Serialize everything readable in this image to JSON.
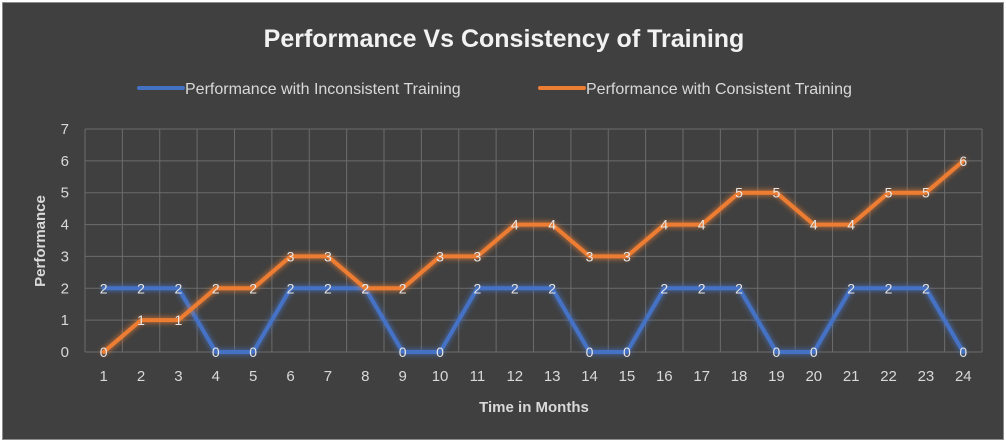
{
  "chart_data": {
    "type": "line",
    "title": "Performance Vs Consistency of Training",
    "xlabel": "Time in Months",
    "ylabel": "Performance",
    "categories": [
      "1",
      "2",
      "3",
      "4",
      "5",
      "6",
      "7",
      "8",
      "9",
      "10",
      "11",
      "12",
      "13",
      "14",
      "15",
      "16",
      "17",
      "18",
      "19",
      "20",
      "21",
      "22",
      "23",
      "24"
    ],
    "ylim": [
      0,
      7
    ],
    "yticks": [
      "0",
      "1",
      "2",
      "3",
      "4",
      "5",
      "6",
      "7"
    ],
    "grid": true,
    "legend_position": "top",
    "series": [
      {
        "name": "Performance with Inconsistent Training",
        "color": "#4472c4",
        "values": [
          2,
          2,
          2,
          0,
          0,
          2,
          2,
          2,
          0,
          0,
          2,
          2,
          2,
          0,
          0,
          2,
          2,
          2,
          0,
          0,
          2,
          2,
          2,
          0
        ]
      },
      {
        "name": "Performance with Consistent Training",
        "color": "#ed7d31",
        "values": [
          0,
          1,
          1,
          2,
          2,
          3,
          3,
          2,
          2,
          3,
          3,
          4,
          4,
          3,
          3,
          4,
          4,
          5,
          5,
          4,
          4,
          5,
          5,
          6
        ]
      }
    ]
  }
}
